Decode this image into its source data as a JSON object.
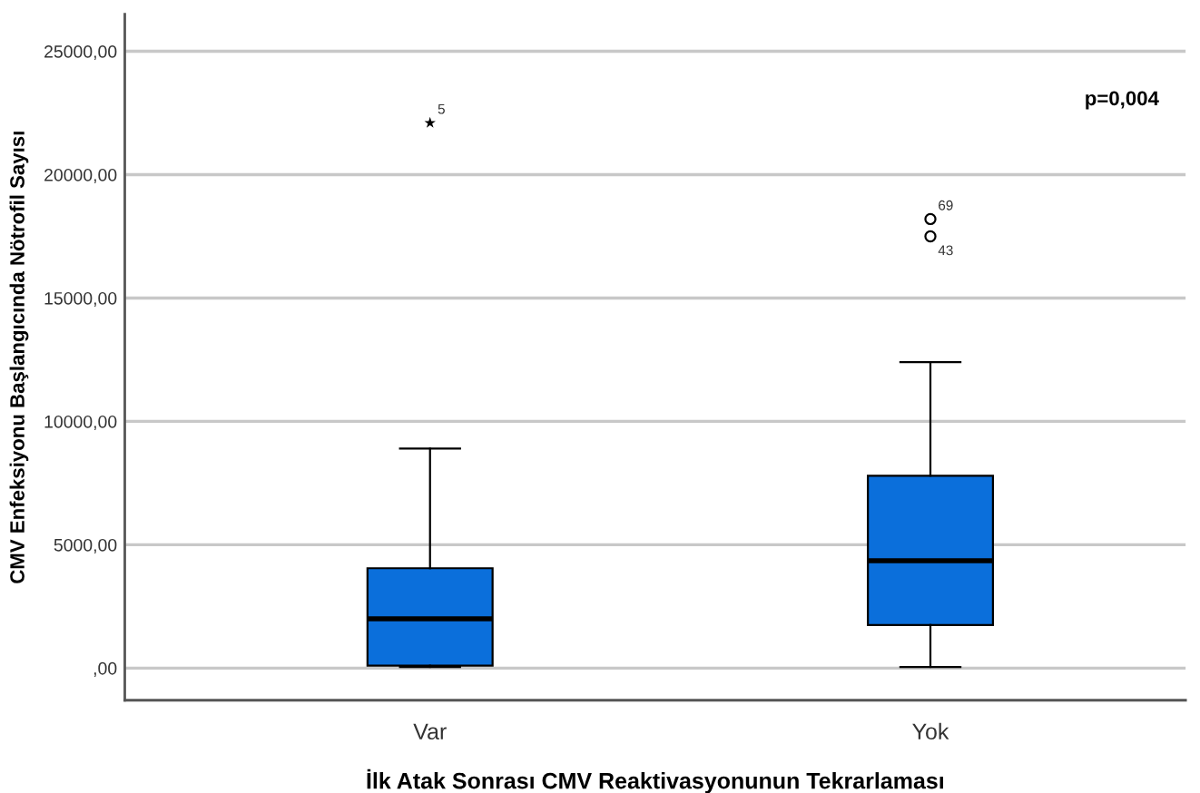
{
  "chart_data": {
    "type": "box",
    "xlabel": "İlk Atak Sonrası CMV Reaktivasyonunun Tekrarlaması",
    "ylabel": "CMV Enfeksiyonu Başlangıcında Nötrofil Sayısı",
    "categories": [
      "Var",
      "Yok"
    ],
    "color": "#0b6fdb",
    "boxes": [
      {
        "low": 50,
        "q1": 100,
        "median": 2000,
        "q3": 4050,
        "high": 8900
      },
      {
        "low": 50,
        "q1": 1750,
        "median": 4350,
        "q3": 7800,
        "high": 12400
      }
    ],
    "series": [
      {
        "type": "scatter",
        "marker": "star",
        "color": "#000000",
        "x": [
          "Var"
        ],
        "values": [
          22100
        ]
      },
      {
        "type": "scatter",
        "marker": "circle",
        "color": "#000000",
        "x": [
          "Yok",
          "Yok"
        ],
        "values": [
          18200,
          17500
        ]
      }
    ],
    "ylim": [
      -1300,
      26500
    ],
    "yticks": [
      {
        "value": 0,
        "label": ",00"
      },
      {
        "value": 5000,
        "label": "5000,00"
      },
      {
        "value": 10000,
        "label": "10000,00"
      },
      {
        "value": 15000,
        "label": "15000,00"
      },
      {
        "value": 20000,
        "label": "20000,00"
      },
      {
        "value": 25000,
        "label": "25000,00"
      }
    ],
    "grid": "y",
    "annotations": [
      "p=0,004",
      {
        "text": "5",
        "x": "Var",
        "y": 22100
      },
      {
        "text": "69",
        "x": "Yok",
        "y": 18200
      },
      {
        "text": "43",
        "x": "Yok",
        "y": 17500
      }
    ]
  }
}
